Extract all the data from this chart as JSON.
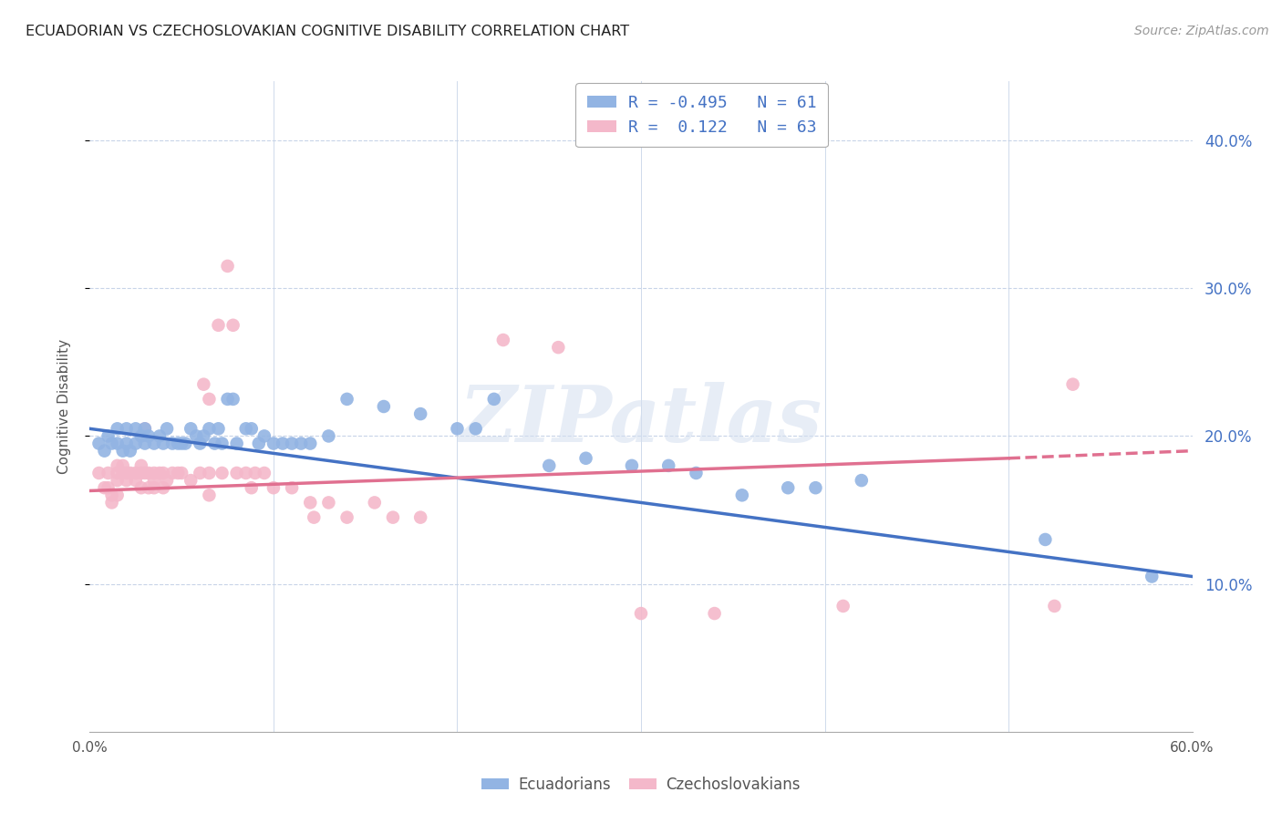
{
  "title": "ECUADORIAN VS CZECHOSLOVAKIAN COGNITIVE DISABILITY CORRELATION CHART",
  "source": "Source: ZipAtlas.com",
  "ylabel": "Cognitive Disability",
  "ytick_vals": [
    0.1,
    0.2,
    0.3,
    0.4
  ],
  "xrange": [
    0.0,
    0.6
  ],
  "yrange": [
    0.0,
    0.44
  ],
  "blue_color": "#92b4e3",
  "pink_color": "#f4b8ca",
  "blue_line_color": "#4472c4",
  "pink_line_color": "#e07090",
  "R_blue": -0.495,
  "N_blue": 61,
  "R_pink": 0.122,
  "N_pink": 63,
  "legend_label_blue": "Ecuadorians",
  "legend_label_pink": "Czechoslovakians",
  "watermark": "ZIPatlas",
  "blue_scatter": [
    [
      0.005,
      0.195
    ],
    [
      0.008,
      0.19
    ],
    [
      0.01,
      0.2
    ],
    [
      0.012,
      0.195
    ],
    [
      0.015,
      0.205
    ],
    [
      0.015,
      0.195
    ],
    [
      0.018,
      0.19
    ],
    [
      0.02,
      0.205
    ],
    [
      0.02,
      0.195
    ],
    [
      0.022,
      0.19
    ],
    [
      0.025,
      0.205
    ],
    [
      0.025,
      0.195
    ],
    [
      0.028,
      0.2
    ],
    [
      0.03,
      0.205
    ],
    [
      0.03,
      0.195
    ],
    [
      0.032,
      0.2
    ],
    [
      0.035,
      0.195
    ],
    [
      0.038,
      0.2
    ],
    [
      0.04,
      0.195
    ],
    [
      0.042,
      0.205
    ],
    [
      0.045,
      0.195
    ],
    [
      0.048,
      0.195
    ],
    [
      0.05,
      0.195
    ],
    [
      0.052,
      0.195
    ],
    [
      0.055,
      0.205
    ],
    [
      0.058,
      0.2
    ],
    [
      0.06,
      0.195
    ],
    [
      0.062,
      0.2
    ],
    [
      0.065,
      0.205
    ],
    [
      0.068,
      0.195
    ],
    [
      0.07,
      0.205
    ],
    [
      0.072,
      0.195
    ],
    [
      0.075,
      0.225
    ],
    [
      0.078,
      0.225
    ],
    [
      0.08,
      0.195
    ],
    [
      0.085,
      0.205
    ],
    [
      0.088,
      0.205
    ],
    [
      0.092,
      0.195
    ],
    [
      0.095,
      0.2
    ],
    [
      0.1,
      0.195
    ],
    [
      0.105,
      0.195
    ],
    [
      0.11,
      0.195
    ],
    [
      0.115,
      0.195
    ],
    [
      0.12,
      0.195
    ],
    [
      0.13,
      0.2
    ],
    [
      0.14,
      0.225
    ],
    [
      0.16,
      0.22
    ],
    [
      0.18,
      0.215
    ],
    [
      0.2,
      0.205
    ],
    [
      0.21,
      0.205
    ],
    [
      0.22,
      0.225
    ],
    [
      0.25,
      0.18
    ],
    [
      0.27,
      0.185
    ],
    [
      0.295,
      0.18
    ],
    [
      0.315,
      0.18
    ],
    [
      0.33,
      0.175
    ],
    [
      0.355,
      0.16
    ],
    [
      0.38,
      0.165
    ],
    [
      0.395,
      0.165
    ],
    [
      0.42,
      0.17
    ],
    [
      0.52,
      0.13
    ],
    [
      0.578,
      0.105
    ]
  ],
  "pink_scatter": [
    [
      0.005,
      0.175
    ],
    [
      0.008,
      0.165
    ],
    [
      0.01,
      0.175
    ],
    [
      0.01,
      0.165
    ],
    [
      0.012,
      0.16
    ],
    [
      0.012,
      0.155
    ],
    [
      0.015,
      0.18
    ],
    [
      0.015,
      0.175
    ],
    [
      0.015,
      0.17
    ],
    [
      0.015,
      0.16
    ],
    [
      0.018,
      0.18
    ],
    [
      0.018,
      0.175
    ],
    [
      0.02,
      0.175
    ],
    [
      0.02,
      0.17
    ],
    [
      0.022,
      0.175
    ],
    [
      0.025,
      0.175
    ],
    [
      0.025,
      0.17
    ],
    [
      0.028,
      0.18
    ],
    [
      0.028,
      0.175
    ],
    [
      0.028,
      0.165
    ],
    [
      0.03,
      0.205
    ],
    [
      0.03,
      0.175
    ],
    [
      0.032,
      0.175
    ],
    [
      0.032,
      0.165
    ],
    [
      0.035,
      0.175
    ],
    [
      0.035,
      0.17
    ],
    [
      0.035,
      0.165
    ],
    [
      0.038,
      0.175
    ],
    [
      0.04,
      0.175
    ],
    [
      0.04,
      0.165
    ],
    [
      0.042,
      0.17
    ],
    [
      0.045,
      0.175
    ],
    [
      0.048,
      0.175
    ],
    [
      0.05,
      0.175
    ],
    [
      0.055,
      0.17
    ],
    [
      0.06,
      0.175
    ],
    [
      0.062,
      0.235
    ],
    [
      0.065,
      0.225
    ],
    [
      0.065,
      0.175
    ],
    [
      0.065,
      0.16
    ],
    [
      0.07,
      0.275
    ],
    [
      0.072,
      0.175
    ],
    [
      0.075,
      0.315
    ],
    [
      0.078,
      0.275
    ],
    [
      0.08,
      0.175
    ],
    [
      0.085,
      0.175
    ],
    [
      0.088,
      0.165
    ],
    [
      0.09,
      0.175
    ],
    [
      0.095,
      0.175
    ],
    [
      0.1,
      0.165
    ],
    [
      0.11,
      0.165
    ],
    [
      0.12,
      0.155
    ],
    [
      0.122,
      0.145
    ],
    [
      0.13,
      0.155
    ],
    [
      0.14,
      0.145
    ],
    [
      0.155,
      0.155
    ],
    [
      0.165,
      0.145
    ],
    [
      0.18,
      0.145
    ],
    [
      0.225,
      0.265
    ],
    [
      0.255,
      0.26
    ],
    [
      0.3,
      0.08
    ],
    [
      0.34,
      0.08
    ],
    [
      0.41,
      0.085
    ],
    [
      0.525,
      0.085
    ],
    [
      0.535,
      0.235
    ]
  ]
}
